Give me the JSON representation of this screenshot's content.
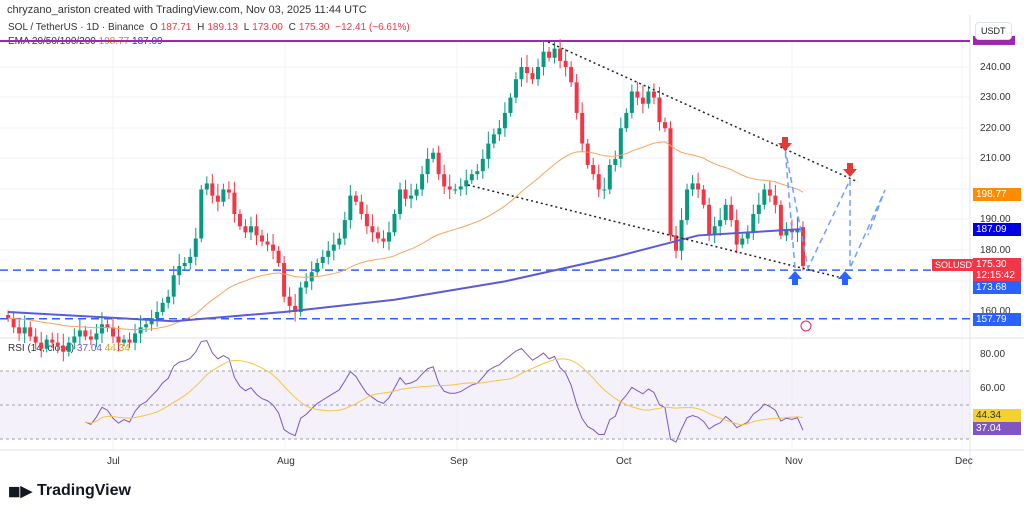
{
  "header": {
    "credit": "chryzano_ariston created with TradingView.com, Nov 03, 2025 11:44 UTC",
    "symbol": "SOL / TetherUS · 1D · Binance",
    "open_label": "O",
    "open": "187.71",
    "high_label": "H",
    "high": "189.13",
    "low_label": "L",
    "low": "173.00",
    "close_label": "C",
    "close": "175.30",
    "change": "−12.41 (−6.61%)",
    "ema_label": "EMA 20/50/100/200",
    "ema_val1": "198.77",
    "ema_val2": "187.09"
  },
  "currency": "USDT",
  "price_ticks": [
    "240.00",
    "230.00",
    "220.00",
    "210.00",
    "190.00",
    "180.00",
    "160.00"
  ],
  "price_tags": {
    "ema50": "198.77",
    "ema200": "187.09",
    "symbol": "SOLUSDT",
    "last": "175.30",
    "countdown": "12:15:42",
    "support1": "173.68",
    "support2": "157.79"
  },
  "rsi": {
    "label": "RSI (14, close)",
    "value": "37.04",
    "ma": "44.34",
    "ticks": [
      "80.00",
      "60.00"
    ]
  },
  "x_ticks": [
    "Jul",
    "Aug",
    "Sep",
    "Oct",
    "Nov",
    "Dec"
  ],
  "brand": "TradingView",
  "colors": {
    "up": "#089981",
    "down": "#f23645",
    "ema50": "#f7a35c",
    "ema200": "#5b5bd6",
    "support": "#2962ff",
    "resistance": "#9c27b0",
    "rsi": "#7e57c2",
    "rsi_ma": "#f5c542"
  },
  "chart_data": {
    "type": "candlestick",
    "start_date": "2025-06-12",
    "closes": [
      158,
      155,
      153,
      155,
      152,
      150,
      148,
      151,
      150,
      149,
      147,
      150,
      152,
      154,
      152,
      151,
      153,
      156,
      155,
      152,
      150,
      151,
      150,
      153,
      155,
      156,
      158,
      160,
      163,
      165,
      172,
      175,
      176,
      178,
      184,
      200,
      202,
      198,
      196,
      200,
      199,
      192,
      188,
      186,
      188,
      185,
      183,
      182,
      180,
      176,
      165,
      162,
      160,
      168,
      170,
      173,
      176,
      178,
      180,
      182,
      184,
      190,
      198,
      196,
      192,
      188,
      186,
      184,
      183,
      186,
      192,
      200,
      197,
      198,
      200,
      205,
      210,
      212,
      205,
      201,
      200,
      200,
      201,
      203,
      205,
      206,
      210,
      215,
      218,
      220,
      225,
      230,
      236,
      240,
      238,
      236,
      240,
      245,
      243,
      246,
      242,
      240,
      235,
      225,
      215,
      208,
      205,
      200,
      200,
      208,
      210,
      220,
      225,
      232,
      230,
      228,
      232,
      230,
      222,
      220,
      185,
      180,
      190,
      200,
      202,
      200,
      195,
      185,
      188,
      190,
      195,
      190,
      182,
      184,
      186,
      192,
      195,
      200,
      198,
      195,
      185,
      187,
      186,
      187,
      175
    ],
    "ema200_knots": [
      [
        0,
        160
      ],
      [
        30,
        157
      ],
      [
        50,
        160
      ],
      [
        70,
        164
      ],
      [
        90,
        170
      ],
      [
        110,
        178
      ],
      [
        125,
        185
      ],
      [
        144,
        187.09
      ]
    ],
    "support_levels": [
      173.68,
      157.79
    ],
    "resistance_level": 248.5
  }
}
